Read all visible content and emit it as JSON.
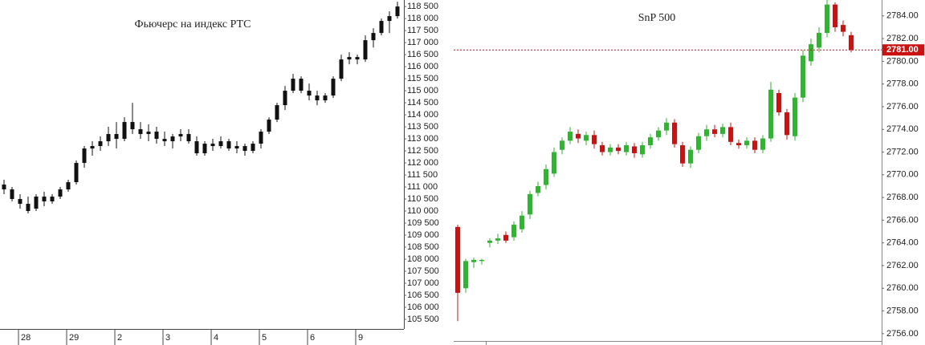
{
  "chart_data": [
    {
      "type": "candlestick",
      "title": "Фьючерс на индекс РТС",
      "categories": [
        null,
        null,
        "28",
        null,
        null,
        null,
        null,
        null,
        "29",
        null,
        null,
        null,
        null,
        null,
        "2",
        null,
        null,
        null,
        null,
        null,
        "3",
        null,
        null,
        null,
        null,
        null,
        "4",
        null,
        null,
        null,
        null,
        null,
        "5",
        null,
        null,
        null,
        null,
        null,
        "6",
        null,
        null,
        null,
        null,
        null,
        "9",
        null,
        null,
        null,
        null,
        null
      ],
      "open": [
        111100,
        110900,
        110500,
        110300,
        110100,
        110600,
        110400,
        110600,
        110900,
        111200,
        112000,
        112600,
        112700,
        112900,
        113200,
        113000,
        113700,
        113400,
        113200,
        113300,
        113000,
        112900,
        113100,
        113200,
        112900,
        112400,
        112800,
        112700,
        112900,
        112600,
        112700,
        112500,
        112800,
        113300,
        113800,
        114400,
        115000,
        115500,
        115000,
        114800,
        114600,
        114800,
        115500,
        116300,
        116400,
        116300,
        117100,
        117400,
        117900,
        118100
      ],
      "high": [
        111300,
        111000,
        110700,
        110600,
        110700,
        110800,
        110700,
        111000,
        111300,
        112100,
        112700,
        112900,
        113100,
        113500,
        113700,
        113900,
        114500,
        113700,
        113600,
        113500,
        113300,
        113200,
        113400,
        113400,
        113100,
        112900,
        113000,
        113100,
        113000,
        112900,
        112800,
        112900,
        113400,
        113900,
        114500,
        115200,
        115700,
        115600,
        115300,
        115000,
        114900,
        115600,
        116500,
        116600,
        116500,
        117300,
        117600,
        118000,
        118300,
        118700
      ],
      "low": [
        110700,
        110400,
        110100,
        109900,
        110000,
        110200,
        110300,
        110500,
        110800,
        111100,
        111800,
        112300,
        112500,
        112700,
        112600,
        112900,
        113200,
        113000,
        112900,
        112800,
        112700,
        112600,
        112900,
        112800,
        112300,
        112300,
        112500,
        112600,
        112500,
        112400,
        112300,
        112400,
        112600,
        113200,
        113700,
        114200,
        114900,
        114900,
        114600,
        114400,
        114500,
        114700,
        115400,
        116100,
        116100,
        116200,
        116800,
        117300,
        117400,
        118000
      ],
      "close": [
        110900,
        110500,
        110300,
        110000,
        110600,
        110400,
        110600,
        110900,
        111200,
        112000,
        112600,
        112700,
        112900,
        113200,
        113000,
        113700,
        113400,
        113200,
        113300,
        113000,
        112900,
        113100,
        113200,
        112900,
        112400,
        112800,
        112700,
        112900,
        112600,
        112700,
        112500,
        112800,
        113300,
        113800,
        114400,
        115000,
        115500,
        115000,
        114800,
        114600,
        114800,
        115500,
        116300,
        116400,
        116300,
        117100,
        117400,
        117900,
        118100,
        118500
      ],
      "color": "#111111",
      "ylim": [
        105100,
        118770
      ],
      "yticks": [
        {
          "value": 105500,
          "label": "105 500"
        },
        {
          "value": 106000,
          "label": "106 000"
        },
        {
          "value": 106500,
          "label": "106 500"
        },
        {
          "value": 107000,
          "label": "107 000"
        },
        {
          "value": 107500,
          "label": "107 500"
        },
        {
          "value": 108000,
          "label": "108 000"
        },
        {
          "value": 108500,
          "label": "108 500"
        },
        {
          "value": 109000,
          "label": "109 000"
        },
        {
          "value": 109500,
          "label": "109 500"
        },
        {
          "value": 110000,
          "label": "110 000"
        },
        {
          "value": 110500,
          "label": "110 500"
        },
        {
          "value": 111000,
          "label": "111 000"
        },
        {
          "value": 111500,
          "label": "111 500"
        },
        {
          "value": 112000,
          "label": "112 000"
        },
        {
          "value": 112500,
          "label": "112 500"
        },
        {
          "value": 113000,
          "label": "113 000"
        },
        {
          "value": 113500,
          "label": "113 500"
        },
        {
          "value": 114000,
          "label": "114 000"
        },
        {
          "value": 114500,
          "label": "114 500"
        },
        {
          "value": 115000,
          "label": "115 000"
        },
        {
          "value": 115500,
          "label": "115 500"
        },
        {
          "value": 116000,
          "label": "116 000"
        },
        {
          "value": 116500,
          "label": "116 500"
        },
        {
          "value": 117000,
          "label": "117 000"
        },
        {
          "value": 117500,
          "label": "117 500"
        },
        {
          "value": 118000,
          "label": "118 000"
        },
        {
          "value": 118500,
          "label": "118 500"
        }
      ]
    },
    {
      "type": "candlestick",
      "title": "SnP 500",
      "open": [
        2765.4,
        2760.0,
        2762.3,
        2762.4,
        2764.0,
        2764.2,
        2764.7,
        2764.5,
        2765.2,
        2766.5,
        2768.4,
        2769.1,
        2770.1,
        2772.2,
        2773.0,
        2773.6,
        2773.0,
        2773.5,
        2772.6,
        2772.0,
        2772.4,
        2772.0,
        2772.5,
        2771.8,
        2772.6,
        2773.3,
        2773.9,
        2774.6,
        2772.6,
        2771.0,
        2772.2,
        2773.4,
        2774.0,
        2773.6,
        2774.2,
        2772.8,
        2772.6,
        2773.0,
        2772.2,
        2773.2,
        2777.2,
        2775.5,
        2773.4,
        2776.8,
        2780.0,
        2781.2,
        2782.5,
        2785.0,
        2783.2,
        2782.3
      ],
      "high": [
        2765.6,
        2762.6,
        2762.7,
        2762.6,
        2764.4,
        2764.8,
        2765.0,
        2765.9,
        2766.8,
        2768.6,
        2769.4,
        2770.9,
        2772.4,
        2773.3,
        2774.2,
        2774.0,
        2773.8,
        2773.9,
        2772.9,
        2772.7,
        2772.7,
        2772.9,
        2772.8,
        2772.9,
        2773.6,
        2774.2,
        2775.0,
        2774.9,
        2772.9,
        2772.5,
        2773.7,
        2774.4,
        2774.4,
        2774.5,
        2774.6,
        2773.1,
        2773.3,
        2773.3,
        2773.5,
        2778.2,
        2777.5,
        2775.8,
        2777.2,
        2781.0,
        2782.0,
        2783.0,
        2785.4,
        2785.2,
        2783.6,
        2782.6
      ],
      "low": [
        2757.1,
        2759.6,
        2761.8,
        2762.1,
        2763.6,
        2763.9,
        2764.0,
        2764.2,
        2764.9,
        2766.1,
        2768.1,
        2768.7,
        2769.8,
        2771.8,
        2772.7,
        2772.8,
        2772.6,
        2772.3,
        2771.7,
        2771.7,
        2771.8,
        2771.7,
        2771.5,
        2771.5,
        2772.3,
        2773.0,
        2773.5,
        2772.4,
        2770.7,
        2770.6,
        2771.9,
        2773.0,
        2773.3,
        2773.3,
        2772.6,
        2772.3,
        2772.3,
        2771.9,
        2771.9,
        2772.9,
        2775.2,
        2773.1,
        2773.0,
        2776.4,
        2779.6,
        2780.8,
        2782.1,
        2782.6,
        2782.2,
        2780.8
      ],
      "close": [
        2759.6,
        2762.4,
        2762.5,
        2762.5,
        2764.2,
        2764.4,
        2764.2,
        2765.6,
        2766.4,
        2768.3,
        2769.0,
        2770.5,
        2772.0,
        2773.0,
        2773.8,
        2773.2,
        2773.5,
        2772.7,
        2772.0,
        2772.4,
        2772.1,
        2772.6,
        2771.9,
        2772.6,
        2773.3,
        2773.9,
        2774.6,
        2772.7,
        2771.0,
        2772.2,
        2773.4,
        2774.0,
        2773.6,
        2774.2,
        2772.9,
        2772.6,
        2773.0,
        2772.2,
        2773.2,
        2777.5,
        2775.5,
        2773.5,
        2776.8,
        2780.5,
        2781.5,
        2782.5,
        2785.0,
        2783.0,
        2782.6,
        2781.0
      ],
      "up_color": "#2fb52f",
      "down_color": "#cc1111",
      "last_price": {
        "value": 2781,
        "label": "2781.00"
      },
      "ylim": [
        2755,
        2785.4
      ],
      "yticks": [
        {
          "value": 2756,
          "label": "2756.00"
        },
        {
          "value": 2758,
          "label": "2758.00"
        },
        {
          "value": 2760,
          "label": "2760.00"
        },
        {
          "value": 2762,
          "label": "2762.00"
        },
        {
          "value": 2764,
          "label": "2764.00"
        },
        {
          "value": 2766,
          "label": "2766.00"
        },
        {
          "value": 2768,
          "label": "2768.00"
        },
        {
          "value": 2770,
          "label": "2770.00"
        },
        {
          "value": 2772,
          "label": "2772.00"
        },
        {
          "value": 2774,
          "label": "2774.00"
        },
        {
          "value": 2776,
          "label": "2776.00"
        },
        {
          "value": 2778,
          "label": "2778.00"
        },
        {
          "value": 2780,
          "label": "2780.00"
        },
        {
          "value": 2782,
          "label": "2782.00"
        },
        {
          "value": 2784,
          "label": "2784.00"
        }
      ]
    }
  ]
}
